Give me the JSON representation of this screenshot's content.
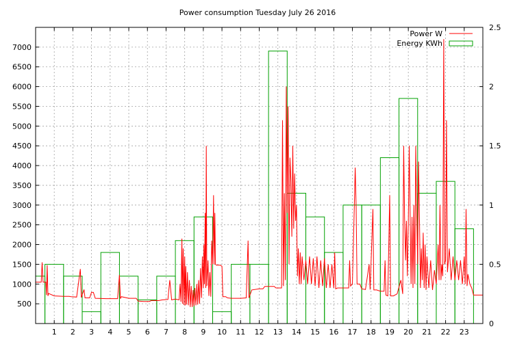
{
  "chart_data": {
    "type": "bar",
    "title": "Power consumption Tuesday July 26 2016",
    "xlabel": "",
    "ylabel": "",
    "x_range": [
      0,
      24
    ],
    "ylim_left": [
      0,
      7500
    ],
    "ylim_right": [
      0,
      2.5
    ],
    "grid": true,
    "legend_position": "top-right",
    "x_ticks": [
      "1",
      "2",
      "3",
      "4",
      "5",
      "6",
      "7",
      "8",
      "9",
      "10",
      "11",
      "12",
      "13",
      "14",
      "15",
      "16",
      "17",
      "18",
      "19",
      "20",
      "21",
      "22",
      "23"
    ],
    "y_ticks_left": [
      "500",
      "1000",
      "1500",
      "2000",
      "2500",
      "3000",
      "3500",
      "4000",
      "4500",
      "5000",
      "5500",
      "6000",
      "6500",
      "7000"
    ],
    "y_ticks_right": [
      "0",
      "0.5",
      "1",
      "1.5",
      "2",
      "2.5"
    ],
    "series": [
      {
        "name": "Power W",
        "kind": "line",
        "axis": "left",
        "color": "#ff0000",
        "points": [
          [
            0.0,
            1050
          ],
          [
            0.3,
            1050
          ],
          [
            0.35,
            1550
          ],
          [
            0.4,
            1050
          ],
          [
            0.55,
            1050
          ],
          [
            0.58,
            720
          ],
          [
            0.62,
            1480
          ],
          [
            0.66,
            700
          ],
          [
            0.7,
            760
          ],
          [
            1.0,
            700
          ],
          [
            1.5,
            690
          ],
          [
            1.8,
            690
          ],
          [
            1.9,
            680
          ],
          [
            2.2,
            670
          ],
          [
            2.4,
            1380
          ],
          [
            2.45,
            660
          ],
          [
            2.6,
            860
          ],
          [
            2.65,
            650
          ],
          [
            2.9,
            650
          ],
          [
            3.0,
            790
          ],
          [
            3.1,
            790
          ],
          [
            3.2,
            640
          ],
          [
            3.8,
            630
          ],
          [
            4.4,
            630
          ],
          [
            4.5,
            1230
          ],
          [
            4.55,
            630
          ],
          [
            4.6,
            680
          ],
          [
            5.0,
            640
          ],
          [
            5.4,
            640
          ],
          [
            5.5,
            570
          ],
          [
            5.8,
            560
          ],
          [
            6.1,
            560
          ],
          [
            6.2,
            580
          ],
          [
            6.6,
            580
          ],
          [
            6.8,
            600
          ],
          [
            7.1,
            610
          ],
          [
            7.2,
            1100
          ],
          [
            7.3,
            600
          ],
          [
            7.5,
            620
          ],
          [
            7.7,
            600
          ],
          [
            7.75,
            1000
          ],
          [
            7.8,
            550
          ],
          [
            7.85,
            2150
          ],
          [
            7.88,
            500
          ],
          [
            7.92,
            1900
          ],
          [
            7.96,
            470
          ],
          [
            8.0,
            1700
          ],
          [
            8.03,
            460
          ],
          [
            8.06,
            1450
          ],
          [
            8.1,
            480
          ],
          [
            8.15,
            1300
          ],
          [
            8.2,
            460
          ],
          [
            8.25,
            1100
          ],
          [
            8.3,
            420
          ],
          [
            8.35,
            950
          ],
          [
            8.4,
            420
          ],
          [
            8.45,
            850
          ],
          [
            8.5,
            440
          ],
          [
            8.55,
            900
          ],
          [
            8.6,
            460
          ],
          [
            8.65,
            1000
          ],
          [
            8.7,
            480
          ],
          [
            8.75,
            1100
          ],
          [
            8.8,
            500
          ],
          [
            8.85,
            1400
          ],
          [
            8.9,
            650
          ],
          [
            8.95,
            1700
          ],
          [
            9.0,
            900
          ],
          [
            9.03,
            2000
          ],
          [
            9.06,
            1000
          ],
          [
            9.1,
            2800
          ],
          [
            9.13,
            900
          ],
          [
            9.16,
            4500
          ],
          [
            9.19,
            950
          ],
          [
            9.25,
            1600
          ],
          [
            9.3,
            700
          ],
          [
            9.35,
            1300
          ],
          [
            9.4,
            680
          ],
          [
            9.45,
            2100
          ],
          [
            9.5,
            1500
          ],
          [
            9.55,
            3250
          ],
          [
            9.58,
            1500
          ],
          [
            9.62,
            2800
          ],
          [
            9.65,
            1500
          ],
          [
            9.7,
            1480
          ],
          [
            9.9,
            1480
          ],
          [
            10.0,
            1450
          ],
          [
            10.05,
            680
          ],
          [
            10.2,
            680
          ],
          [
            10.3,
            650
          ],
          [
            10.5,
            640
          ],
          [
            11.0,
            640
          ],
          [
            11.3,
            650
          ],
          [
            11.4,
            2100
          ],
          [
            11.45,
            650
          ],
          [
            11.6,
            850
          ],
          [
            12.0,
            880
          ],
          [
            12.2,
            880
          ],
          [
            12.3,
            940
          ],
          [
            12.8,
            940
          ],
          [
            12.9,
            900
          ],
          [
            13.2,
            900
          ],
          [
            13.25,
            5150
          ],
          [
            13.3,
            950
          ],
          [
            13.35,
            3300
          ],
          [
            13.4,
            1100
          ],
          [
            13.45,
            6000
          ],
          [
            13.5,
            2800
          ],
          [
            13.55,
            5500
          ],
          [
            13.6,
            1500
          ],
          [
            13.65,
            4200
          ],
          [
            13.7,
            3600
          ],
          [
            13.75,
            2200
          ],
          [
            13.8,
            4500
          ],
          [
            13.85,
            2400
          ],
          [
            13.9,
            3800
          ],
          [
            13.95,
            2600
          ],
          [
            14.0,
            3000
          ],
          [
            14.05,
            1200
          ],
          [
            14.1,
            1900
          ],
          [
            14.15,
            1000
          ],
          [
            14.2,
            1800
          ],
          [
            14.25,
            1000
          ],
          [
            14.3,
            1700
          ],
          [
            14.4,
            1100
          ],
          [
            14.5,
            1600
          ],
          [
            14.6,
            1000
          ],
          [
            14.7,
            1700
          ],
          [
            14.8,
            1000
          ],
          [
            14.9,
            1650
          ],
          [
            15.0,
            950
          ],
          [
            15.1,
            1700
          ],
          [
            15.2,
            900
          ],
          [
            15.3,
            1600
          ],
          [
            15.4,
            950
          ],
          [
            15.5,
            1650
          ],
          [
            15.6,
            900
          ],
          [
            15.7,
            1500
          ],
          [
            15.8,
            900
          ],
          [
            15.9,
            1500
          ],
          [
            16.0,
            900
          ],
          [
            16.05,
            1800
          ],
          [
            16.1,
            880
          ],
          [
            16.2,
            900
          ],
          [
            16.4,
            900
          ],
          [
            16.8,
            900
          ],
          [
            16.85,
            1600
          ],
          [
            16.9,
            950
          ],
          [
            17.0,
            1000
          ],
          [
            17.1,
            2950
          ],
          [
            17.15,
            3950
          ],
          [
            17.2,
            2950
          ],
          [
            17.25,
            1000
          ],
          [
            17.4,
            1000
          ],
          [
            17.5,
            880
          ],
          [
            17.7,
            860
          ],
          [
            17.9,
            1500
          ],
          [
            17.95,
            860
          ],
          [
            18.1,
            2900
          ],
          [
            18.15,
            850
          ],
          [
            18.3,
            850
          ],
          [
            18.5,
            820
          ],
          [
            18.7,
            820
          ],
          [
            18.75,
            1600
          ],
          [
            18.8,
            720
          ],
          [
            18.9,
            700
          ],
          [
            19.0,
            3250
          ],
          [
            19.05,
            700
          ],
          [
            19.2,
            700
          ],
          [
            19.4,
            750
          ],
          [
            19.6,
            1100
          ],
          [
            19.7,
            750
          ],
          [
            19.75,
            4500
          ],
          [
            19.8,
            2700
          ],
          [
            19.85,
            1600
          ],
          [
            19.9,
            2600
          ],
          [
            19.95,
            1200
          ],
          [
            20.0,
            2600
          ],
          [
            20.05,
            4500
          ],
          [
            20.1,
            2700
          ],
          [
            20.15,
            1000
          ],
          [
            20.2,
            2700
          ],
          [
            20.25,
            900
          ],
          [
            20.3,
            3000
          ],
          [
            20.35,
            1000
          ],
          [
            20.4,
            4500
          ],
          [
            20.45,
            2800
          ],
          [
            20.5,
            1500
          ],
          [
            20.55,
            4100
          ],
          [
            20.6,
            2600
          ],
          [
            20.65,
            900
          ],
          [
            20.7,
            1900
          ],
          [
            20.75,
            1100
          ],
          [
            20.8,
            2300
          ],
          [
            20.85,
            900
          ],
          [
            20.9,
            2000
          ],
          [
            20.95,
            850
          ],
          [
            21.0,
            1700
          ],
          [
            21.1,
            900
          ],
          [
            21.2,
            1600
          ],
          [
            21.3,
            850
          ],
          [
            21.4,
            1350
          ],
          [
            21.5,
            1000
          ],
          [
            21.6,
            2000
          ],
          [
            21.65,
            1100
          ],
          [
            21.7,
            3000
          ],
          [
            21.75,
            1100
          ],
          [
            21.8,
            1500
          ],
          [
            21.85,
            1200
          ],
          [
            21.9,
            7200
          ],
          [
            21.95,
            1500
          ],
          [
            22.0,
            1600
          ],
          [
            22.05,
            5150
          ],
          [
            22.1,
            1300
          ],
          [
            22.2,
            1900
          ],
          [
            22.3,
            1100
          ],
          [
            22.4,
            1700
          ],
          [
            22.5,
            1100
          ],
          [
            22.6,
            1600
          ],
          [
            22.7,
            1100
          ],
          [
            22.8,
            1600
          ],
          [
            22.9,
            1000
          ],
          [
            23.0,
            1700
          ],
          [
            23.05,
            1000
          ],
          [
            23.1,
            2900
          ],
          [
            23.15,
            950
          ],
          [
            23.2,
            1250
          ],
          [
            23.3,
            1000
          ],
          [
            23.4,
            900
          ],
          [
            23.5,
            720
          ],
          [
            23.7,
            720
          ],
          [
            24.0,
            720
          ]
        ]
      },
      {
        "name": "Energy KWh",
        "kind": "bar",
        "axis": "right",
        "color": "#00a000",
        "categories": [
          0,
          1,
          2,
          3,
          4,
          5,
          6,
          7,
          8,
          9,
          10,
          11,
          12,
          13,
          14,
          15,
          16,
          17,
          18,
          19,
          20,
          21,
          22,
          23
        ],
        "values": [
          0.4,
          0.5,
          0.4,
          0.1,
          0.6,
          0.4,
          0.2,
          0.4,
          0.7,
          0.9,
          0.1,
          0.5,
          0.5,
          2.3,
          1.1,
          0.9,
          0.6,
          1.0,
          1.0,
          1.4,
          1.9,
          1.1,
          1.2,
          0.8
        ]
      }
    ]
  }
}
